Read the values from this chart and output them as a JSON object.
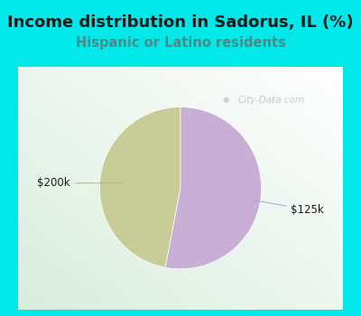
{
  "title": "Income distribution in Sadorus, IL (%)",
  "subtitle": "Hispanic or Latino residents",
  "slices": [
    {
      "label": "$200k",
      "value": 47,
      "color": "#c8cc96"
    },
    {
      "label": "$125k",
      "value": 53,
      "color": "#c9aed6"
    }
  ],
  "title_color": "#1a1a1a",
  "subtitle_color": "#4a8a8a",
  "bg_color": "#00e8e8",
  "watermark": "City-Data.com",
  "watermark_color": "#b8c4cc",
  "label_color": "#1a1a1a",
  "label_fontsize": 8.5,
  "title_fontsize": 13,
  "subtitle_fontsize": 10.5,
  "startangle": 90
}
